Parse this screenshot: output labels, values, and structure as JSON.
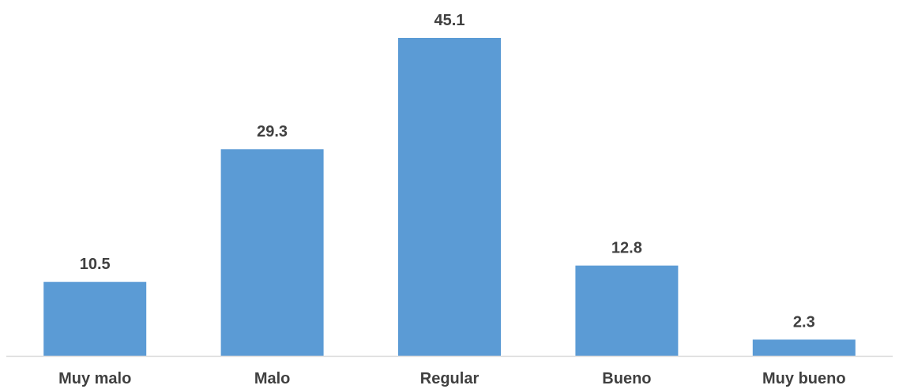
{
  "chart_data": {
    "type": "bar",
    "categories": [
      "Muy malo",
      "Malo",
      "Regular",
      "Bueno",
      "Muy bueno"
    ],
    "values": [
      10.5,
      29.3,
      45.1,
      12.8,
      2.3
    ],
    "data_labels": [
      "10.5",
      "29.3",
      "45.1",
      "12.8",
      "2.3"
    ],
    "title": "",
    "xlabel": "",
    "ylabel": "",
    "ylim": [
      0,
      45.1
    ],
    "grid": false,
    "legend": "none",
    "bar_color": "#5B9BD5",
    "axis_color": "#D9D9D9",
    "label_color": "#404040"
  }
}
